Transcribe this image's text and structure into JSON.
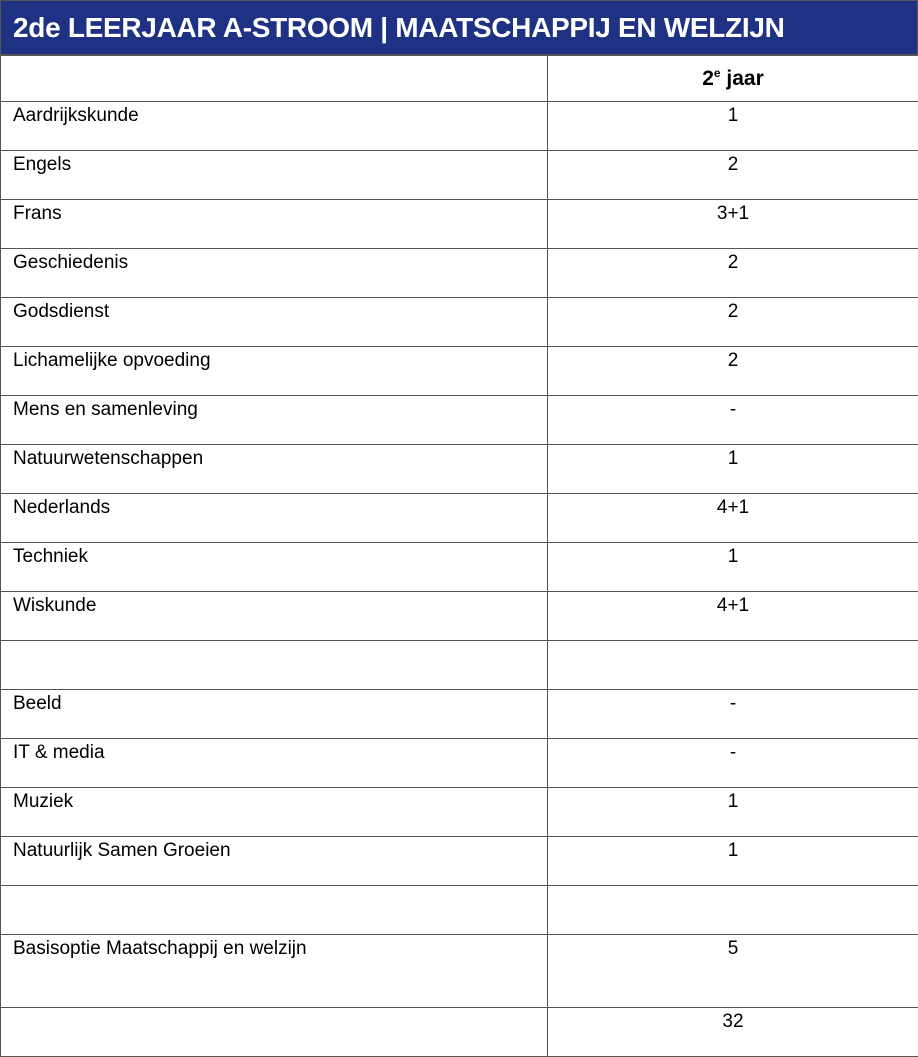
{
  "title": "2de LEERJAAR A-STROOM | MAATSCHAPPIJ EN WELZIJN",
  "colors": {
    "title_background": "#1f3182",
    "title_text": "#ffffff"
  },
  "table": {
    "header": {
      "subject": "",
      "year_number": "2",
      "year_sup": "e",
      "year_word": "jaar"
    },
    "rows": [
      {
        "subject": "Aardrijkskunde",
        "hours": "1"
      },
      {
        "subject": "Engels",
        "hours": "2"
      },
      {
        "subject": "Frans",
        "hours": "3+1"
      },
      {
        "subject": "Geschiedenis",
        "hours": "2"
      },
      {
        "subject": "Godsdienst",
        "hours": "2"
      },
      {
        "subject": "Lichamelijke opvoeding",
        "hours": "2"
      },
      {
        "subject": "Mens en samenleving",
        "hours": "-"
      },
      {
        "subject": "Natuurwetenschappen",
        "hours": "1"
      },
      {
        "subject": "Nederlands",
        "hours": "4+1"
      },
      {
        "subject": "Techniek",
        "hours": "1"
      },
      {
        "subject": "Wiskunde",
        "hours": "4+1"
      },
      {
        "subject": "",
        "hours": ""
      },
      {
        "subject": "Beeld",
        "hours": "-"
      },
      {
        "subject": "IT & media",
        "hours": "-"
      },
      {
        "subject": "Muziek",
        "hours": "1"
      },
      {
        "subject": "Natuurlijk Samen Groeien",
        "hours": "1"
      },
      {
        "subject": "",
        "hours": ""
      },
      {
        "subject": "Basisoptie Maatschappij en welzijn",
        "hours": "5",
        "tall": true
      },
      {
        "subject": "",
        "hours": "32"
      }
    ]
  }
}
